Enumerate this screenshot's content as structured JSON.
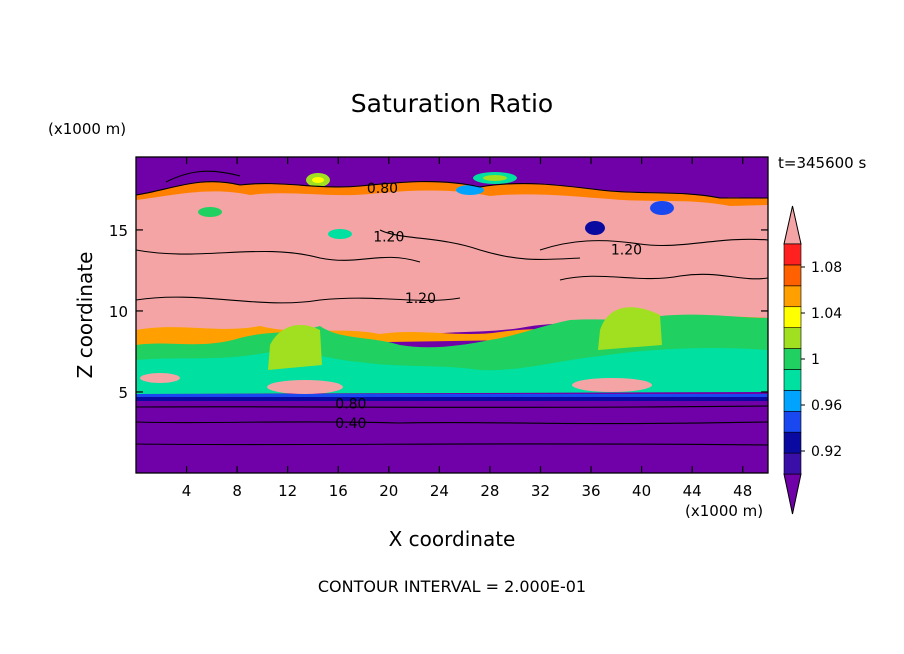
{
  "chart_data": {
    "type": "heatmap",
    "title": "Saturation Ratio",
    "xlabel": "X coordinate",
    "ylabel": "Z coordinate",
    "x_unit": "(x1000 m)",
    "y_unit": "(x1000 m)",
    "time_label": "t=345600 s",
    "footer": "CONTOUR INTERVAL = 2.000E-01",
    "xlim": [
      0,
      50
    ],
    "ylim": [
      0,
      19.5
    ],
    "x_ticks": [
      4,
      8,
      12,
      16,
      20,
      24,
      28,
      32,
      36,
      40,
      44,
      48
    ],
    "y_ticks": [
      5,
      10,
      15
    ],
    "contour_labels": [
      {
        "text": "0.80",
        "x": 19.5,
        "y": 17.6
      },
      {
        "text": "1.20",
        "x": 20.0,
        "y": 14.6
      },
      {
        "text": "1.20",
        "x": 22.5,
        "y": 10.8
      },
      {
        "text": "1.20",
        "x": 38.8,
        "y": 13.8
      },
      {
        "text": "0.80",
        "x": 17.0,
        "y": 4.3
      },
      {
        "text": "0.40",
        "x": 17.0,
        "y": 3.1
      }
    ],
    "colorbar": {
      "labels": [
        "1.08",
        "1.04",
        "1",
        "0.96",
        "0.92"
      ],
      "label_values": [
        1.08,
        1.04,
        1.0,
        0.96,
        0.92
      ],
      "levels": [
        0.9,
        0.92,
        0.94,
        0.96,
        0.98,
        1.0,
        1.02,
        1.04,
        1.06,
        1.08,
        1.1
      ],
      "colors": [
        "#3a0fa8",
        "#0a0aa0",
        "#1a48f0",
        "#00a4ff",
        "#00e0a0",
        "#20d060",
        "#a0e020",
        "#ffff00",
        "#ffa000",
        "#ff6000",
        "#ff2020"
      ],
      "under_color": "#7000a8",
      "over_color": "#f4a4a4"
    }
  }
}
